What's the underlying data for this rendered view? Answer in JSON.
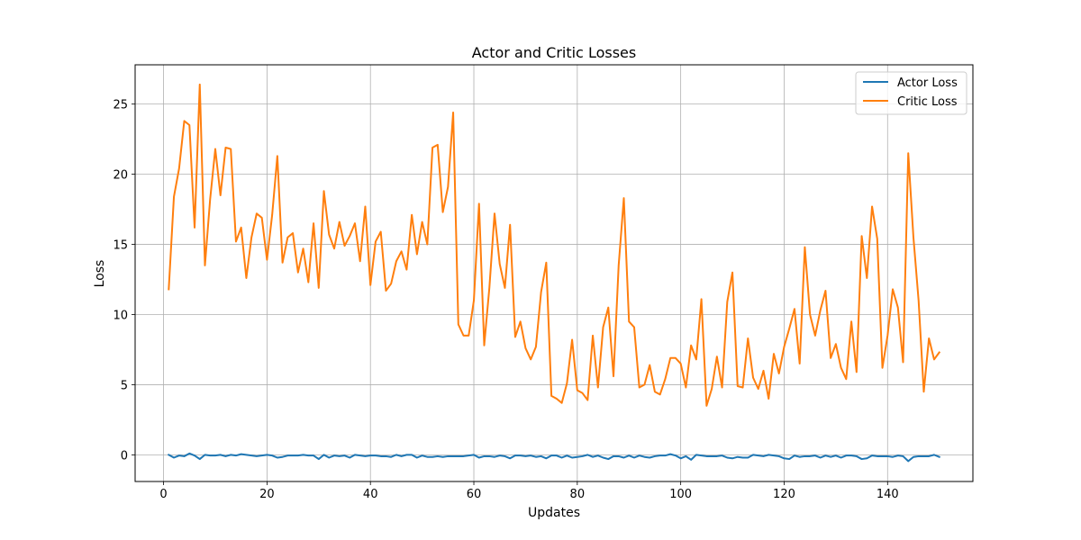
{
  "chart_data": {
    "type": "line",
    "title": "Actor and Critic Losses",
    "xlabel": "Updates",
    "ylabel": "Loss",
    "xlim": [
      -5.5,
      156.5
    ],
    "ylim": [
      -1.9,
      27.8
    ],
    "xticks": [
      0,
      20,
      40,
      60,
      80,
      100,
      120,
      140
    ],
    "yticks": [
      0,
      5,
      10,
      15,
      20,
      25
    ],
    "grid": true,
    "legend_position": "top-right",
    "x": [
      1,
      2,
      3,
      4,
      5,
      6,
      7,
      8,
      9,
      10,
      11,
      12,
      13,
      14,
      15,
      16,
      17,
      18,
      19,
      20,
      21,
      22,
      23,
      24,
      25,
      26,
      27,
      28,
      29,
      30,
      31,
      32,
      33,
      34,
      35,
      36,
      37,
      38,
      39,
      40,
      41,
      42,
      43,
      44,
      45,
      46,
      47,
      48,
      49,
      50,
      51,
      52,
      53,
      54,
      55,
      56,
      57,
      58,
      59,
      60,
      61,
      62,
      63,
      64,
      65,
      66,
      67,
      68,
      69,
      70,
      71,
      72,
      73,
      74,
      75,
      76,
      77,
      78,
      79,
      80,
      81,
      82,
      83,
      84,
      85,
      86,
      87,
      88,
      89,
      90,
      91,
      92,
      93,
      94,
      95,
      96,
      97,
      98,
      99,
      100,
      101,
      102,
      103,
      104,
      105,
      106,
      107,
      108,
      109,
      110,
      111,
      112,
      113,
      114,
      115,
      116,
      117,
      118,
      119,
      120,
      121,
      122,
      123,
      124,
      125,
      126,
      127,
      128,
      129,
      130,
      131,
      132,
      133,
      134,
      135,
      136,
      137,
      138,
      139,
      140,
      141,
      142,
      143,
      144,
      145,
      146,
      147,
      148,
      149,
      150
    ],
    "series": [
      {
        "name": "Actor Loss",
        "color": "#1f77b4",
        "values": [
          0.0,
          -0.2,
          -0.05,
          -0.1,
          0.1,
          -0.05,
          -0.3,
          0.0,
          -0.05,
          -0.05,
          0.0,
          -0.1,
          0.0,
          -0.05,
          0.05,
          0.0,
          -0.05,
          -0.1,
          -0.05,
          0.0,
          -0.05,
          -0.2,
          -0.15,
          -0.05,
          -0.05,
          -0.05,
          0.0,
          -0.05,
          -0.05,
          -0.3,
          0.0,
          -0.2,
          -0.05,
          -0.1,
          -0.05,
          -0.2,
          0.0,
          -0.05,
          -0.1,
          -0.05,
          -0.05,
          -0.1,
          -0.1,
          -0.15,
          0.0,
          -0.1,
          0.0,
          0.0,
          -0.2,
          -0.05,
          -0.15,
          -0.15,
          -0.1,
          -0.15,
          -0.1,
          -0.1,
          -0.1,
          -0.1,
          -0.05,
          0.0,
          -0.2,
          -0.1,
          -0.1,
          -0.15,
          -0.05,
          -0.1,
          -0.25,
          -0.05,
          -0.05,
          -0.1,
          -0.05,
          -0.15,
          -0.1,
          -0.25,
          -0.05,
          -0.05,
          -0.2,
          -0.05,
          -0.2,
          -0.15,
          -0.1,
          0.0,
          -0.15,
          -0.05,
          -0.2,
          -0.3,
          -0.1,
          -0.1,
          -0.2,
          -0.05,
          -0.2,
          -0.05,
          -0.15,
          -0.2,
          -0.1,
          -0.05,
          -0.05,
          0.05,
          -0.05,
          -0.25,
          -0.1,
          -0.35,
          0.0,
          -0.05,
          -0.1,
          -0.1,
          -0.1,
          -0.05,
          -0.2,
          -0.25,
          -0.15,
          -0.2,
          -0.2,
          0.0,
          -0.05,
          -0.1,
          0.0,
          -0.05,
          -0.1,
          -0.25,
          -0.3,
          -0.05,
          -0.15,
          -0.1,
          -0.1,
          -0.05,
          -0.2,
          -0.05,
          -0.15,
          -0.05,
          -0.2,
          -0.05,
          -0.05,
          -0.1,
          -0.3,
          -0.25,
          -0.05,
          -0.1,
          -0.1,
          -0.1,
          -0.15,
          -0.05,
          -0.1,
          -0.45,
          -0.15,
          -0.1,
          -0.1,
          -0.1,
          0.0,
          -0.15
        ]
      },
      {
        "name": "Critic Loss",
        "color": "#ff7f0e",
        "values": [
          11.8,
          18.4,
          20.4,
          23.8,
          23.5,
          16.2,
          26.4,
          13.5,
          18.2,
          21.8,
          18.5,
          21.9,
          21.8,
          15.2,
          16.2,
          12.6,
          15.5,
          17.2,
          16.9,
          13.9,
          17.1,
          21.3,
          13.7,
          15.5,
          15.8,
          13.0,
          14.7,
          12.3,
          16.5,
          11.9,
          18.8,
          15.7,
          14.7,
          16.6,
          14.9,
          15.6,
          16.5,
          13.8,
          17.7,
          12.1,
          15.2,
          15.9,
          11.7,
          12.2,
          13.8,
          14.5,
          13.2,
          17.1,
          14.3,
          16.6,
          15.0,
          21.9,
          22.1,
          17.3,
          19.1,
          24.4,
          9.3,
          8.5,
          8.5,
          11.0,
          17.9,
          7.8,
          11.9,
          17.2,
          13.6,
          11.9,
          16.4,
          8.4,
          9.5,
          7.6,
          6.8,
          7.7,
          11.6,
          13.7,
          4.2,
          4.0,
          3.7,
          5.1,
          8.2,
          4.6,
          4.4,
          3.9,
          8.5,
          4.8,
          9.1,
          10.5,
          5.6,
          13.5,
          18.3,
          9.5,
          9.1,
          4.8,
          5.0,
          6.4,
          4.5,
          4.3,
          5.4,
          6.9,
          6.9,
          6.5,
          4.8,
          7.8,
          6.8,
          11.1,
          3.5,
          4.7,
          7.0,
          4.8,
          10.9,
          13.0,
          4.9,
          4.8,
          8.3,
          5.5,
          4.7,
          6.0,
          4.0,
          7.2,
          5.8,
          7.7,
          9.0,
          10.4,
          6.5,
          14.8,
          10.0,
          8.5,
          10.3,
          11.7,
          6.9,
          7.9,
          6.2,
          5.4,
          9.5,
          5.9,
          15.6,
          12.6,
          17.7,
          15.4,
          6.2,
          8.5,
          11.8,
          10.5,
          6.6,
          21.5,
          15.5,
          11.0,
          4.5,
          8.3,
          6.8,
          7.3
        ]
      }
    ]
  }
}
